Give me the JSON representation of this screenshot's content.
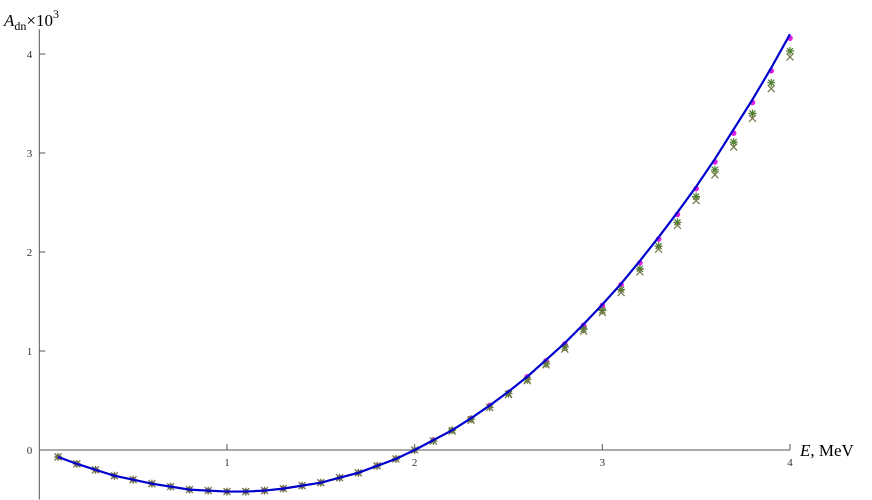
{
  "chart_data": {
    "type": "line",
    "ylabel": {
      "main": "A",
      "sub": "dn",
      "mid": "×10",
      "sup": "3"
    },
    "xlabel": {
      "var": "E",
      "unit": ", MeV"
    },
    "x": [
      0.1,
      0.2,
      0.3,
      0.4,
      0.5,
      0.6,
      0.7,
      0.8,
      0.9,
      1.0,
      1.1,
      1.2,
      1.3,
      1.4,
      1.5,
      1.6,
      1.7,
      1.8,
      1.9,
      2.0,
      2.1,
      2.2,
      2.3,
      2.4,
      2.5,
      2.6,
      2.7,
      2.8,
      2.9,
      3.0,
      3.1,
      3.2,
      3.3,
      3.4,
      3.5,
      3.6,
      3.7,
      3.8,
      3.9,
      4.0
    ],
    "series": [
      {
        "color": "#0000cc",
        "marker": "line",
        "values": [
          -0.07,
          -0.14,
          -0.2,
          -0.26,
          -0.3,
          -0.34,
          -0.37,
          -0.4,
          -0.41,
          -0.42,
          -0.42,
          -0.41,
          -0.39,
          -0.36,
          -0.33,
          -0.28,
          -0.23,
          -0.16,
          -0.09,
          0,
          0.1,
          0.2,
          0.32,
          0.45,
          0.59,
          0.74,
          0.91,
          1.08,
          1.27,
          1.47,
          1.68,
          1.91,
          2.15,
          2.4,
          2.66,
          2.94,
          3.24,
          3.54,
          3.86,
          4.2
        ]
      },
      {
        "color": "#e020e0",
        "marker": "dot",
        "values": [
          -0.07,
          -0.14,
          -0.2,
          -0.26,
          -0.3,
          -0.34,
          -0.37,
          -0.4,
          -0.41,
          -0.42,
          -0.42,
          -0.41,
          -0.39,
          -0.36,
          -0.33,
          -0.28,
          -0.23,
          -0.16,
          -0.09,
          0,
          0.1,
          0.2,
          0.32,
          0.45,
          0.58,
          0.74,
          0.9,
          1.07,
          1.26,
          1.46,
          1.67,
          1.89,
          2.13,
          2.38,
          2.64,
          2.91,
          3.2,
          3.51,
          3.83,
          4.16
        ]
      },
      {
        "color": "#4f7f2f",
        "marker": "asterisk",
        "values": [
          -0.07,
          -0.14,
          -0.2,
          -0.26,
          -0.3,
          -0.34,
          -0.37,
          -0.4,
          -0.41,
          -0.42,
          -0.42,
          -0.41,
          -0.39,
          -0.36,
          -0.33,
          -0.28,
          -0.23,
          -0.16,
          -0.09,
          0,
          0.09,
          0.2,
          0.31,
          0.43,
          0.57,
          0.71,
          0.87,
          1.04,
          1.22,
          1.41,
          1.62,
          1.83,
          2.06,
          2.3,
          2.56,
          2.83,
          3.11,
          3.4,
          3.71,
          4.03
        ]
      },
      {
        "color": "#77774a",
        "marker": "cross",
        "values": [
          -0.07,
          -0.14,
          -0.2,
          -0.26,
          -0.3,
          -0.34,
          -0.37,
          -0.4,
          -0.41,
          -0.42,
          -0.42,
          -0.41,
          -0.39,
          -0.36,
          -0.33,
          -0.28,
          -0.23,
          -0.16,
          -0.09,
          0,
          0.09,
          0.19,
          0.3,
          0.43,
          0.56,
          0.7,
          0.86,
          1.02,
          1.2,
          1.39,
          1.59,
          1.8,
          2.03,
          2.27,
          2.52,
          2.78,
          3.06,
          3.35,
          3.65,
          3.97
        ]
      }
    ],
    "xlim": [
      0,
      4
    ],
    "ylim": [
      -0.5,
      4.25
    ],
    "xticks": [
      1,
      2,
      3,
      4
    ],
    "yticks": [
      0,
      1,
      2,
      3,
      4
    ]
  }
}
